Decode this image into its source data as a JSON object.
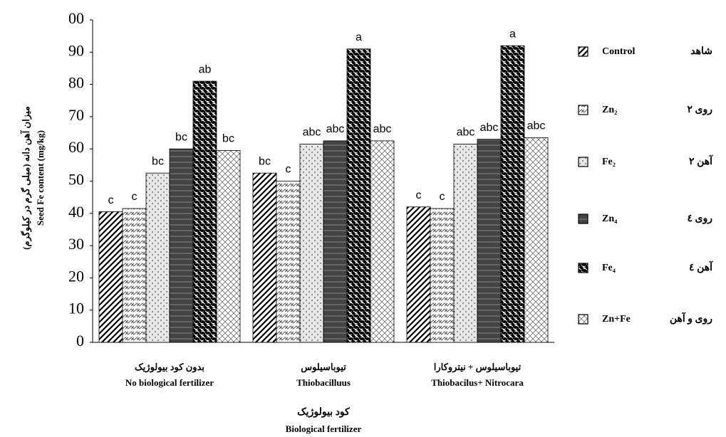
{
  "chart_data": {
    "type": "bar",
    "y_label": [
      "میزان آهن دانه (میلی گرم در کیلوگرم)",
      "Seed Fe content (mg/kg)"
    ],
    "x_label": [
      "کود بیولوژیک",
      "Biological fertilizer"
    ],
    "categories": [
      "No biological fertilizer",
      "Thiobacilluus",
      "Thiobacilus+ Nitrocara"
    ],
    "categories_fa": [
      "بدون کود بیولوژیک",
      "تیوباسیلوس",
      "تیوباسیلوس + نیتروکارا"
    ],
    "series": [
      {
        "name": "Control",
        "name_fa": "شاهد",
        "color": "#000000",
        "values": [
          40.5,
          52.5,
          42
        ],
        "letters": [
          "c",
          "bc",
          "c"
        ]
      },
      {
        "name": "Zn₂",
        "name_fa": "روی ۲",
        "color": "#444444",
        "values": [
          41.5,
          50,
          41.5
        ],
        "letters": [
          "c",
          "c",
          "c"
        ]
      },
      {
        "name": "Fe₂",
        "name_fa": "آهن ۲",
        "color": "#777777",
        "values": [
          52.5,
          61.5,
          61.5
        ],
        "letters": [
          "bc",
          "abc",
          "abc"
        ]
      },
      {
        "name": "Zn₄",
        "name_fa": "روی ٤",
        "color": "#444444",
        "values": [
          60,
          62.5,
          63
        ],
        "letters": [
          "bc",
          "abc",
          "abc"
        ]
      },
      {
        "name": "Fe₄",
        "name_fa": "آهن ٤",
        "color": "#000000",
        "values": [
          81,
          91,
          92
        ],
        "letters": [
          "ab",
          "a",
          "a"
        ]
      },
      {
        "name": "Zn+Fe",
        "name_fa": "روی و آهن",
        "color": "#555555",
        "values": [
          59.5,
          62.5,
          63.5
        ],
        "letters": [
          "bc",
          "abc",
          "abc"
        ]
      }
    ],
    "ylim": [
      0,
      100
    ],
    "yticks": [
      0,
      10,
      20,
      30,
      40,
      50,
      60,
      70,
      80,
      90,
      {
        "value": 100,
        "label": "00"
      }
    ],
    "grid": false
  }
}
